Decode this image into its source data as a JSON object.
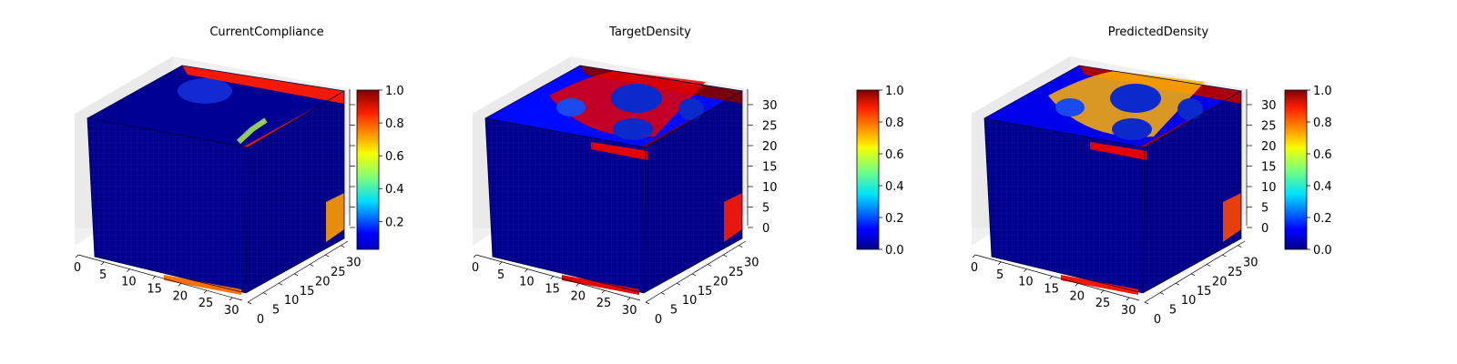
{
  "panels": [
    {
      "title": "CurrentCompliance",
      "x_ticks": [
        "0",
        "5",
        "10",
        "15",
        "20",
        "25",
        "30"
      ],
      "y_ticks": [
        "0",
        "5",
        "10",
        "15",
        "20",
        "25",
        "30"
      ],
      "z_ticks": [],
      "colorbar": {
        "ticks": [
          "0.2",
          "0.4",
          "0.6",
          "0.8",
          "1.0"
        ],
        "range": [
          0.03,
          1.0
        ]
      },
      "features": {
        "top_edge_density": 0.85,
        "top_interior_density": 0.12,
        "right_face_density": 0.15
      }
    },
    {
      "title": "TargetDensity",
      "x_ticks": [
        "0",
        "5",
        "10",
        "15",
        "20",
        "25",
        "30"
      ],
      "y_ticks": [
        "0",
        "5",
        "10",
        "15",
        "20",
        "25",
        "30"
      ],
      "z_ticks": [
        "0",
        "5",
        "10",
        "15",
        "20",
        "25",
        "30"
      ],
      "colorbar": {
        "ticks": [
          "0.0",
          "0.2",
          "0.4",
          "0.6",
          "0.8",
          "1.0"
        ],
        "range": [
          0.0,
          1.0
        ]
      },
      "features": {
        "top_edge_density": 1.0,
        "top_interior_density": 0.9,
        "right_face_density": 0.2
      }
    },
    {
      "title": "PredictedDensity",
      "x_ticks": [
        "0",
        "5",
        "10",
        "15",
        "20",
        "25",
        "30"
      ],
      "y_ticks": [
        "0",
        "5",
        "10",
        "15",
        "20",
        "25",
        "30"
      ],
      "z_ticks": [
        "0",
        "5",
        "10",
        "15",
        "20",
        "25",
        "30"
      ],
      "colorbar": {
        "ticks": [
          "0.0",
          "0.2",
          "0.4",
          "0.6",
          "0.8",
          "1.0"
        ],
        "range": [
          0.0,
          1.0
        ]
      },
      "features": {
        "top_edge_density": 0.95,
        "top_interior_density": 0.7,
        "right_face_density": 0.2
      }
    }
  ],
  "chart_data": [
    {
      "type": "heatmap",
      "title": "CurrentCompliance",
      "plot": "3d voxel cube",
      "axis_range": [
        0,
        32
      ],
      "color_range": [
        0.03,
        1.0
      ],
      "colormap": "jet"
    },
    {
      "type": "heatmap",
      "title": "TargetDensity",
      "plot": "3d voxel cube",
      "axis_range": [
        0,
        32
      ],
      "color_range": [
        0.0,
        1.0
      ],
      "colormap": "jet"
    },
    {
      "type": "heatmap",
      "title": "PredictedDensity",
      "plot": "3d voxel cube",
      "axis_range": [
        0,
        32
      ],
      "color_range": [
        0.0,
        1.0
      ],
      "colormap": "jet"
    }
  ]
}
